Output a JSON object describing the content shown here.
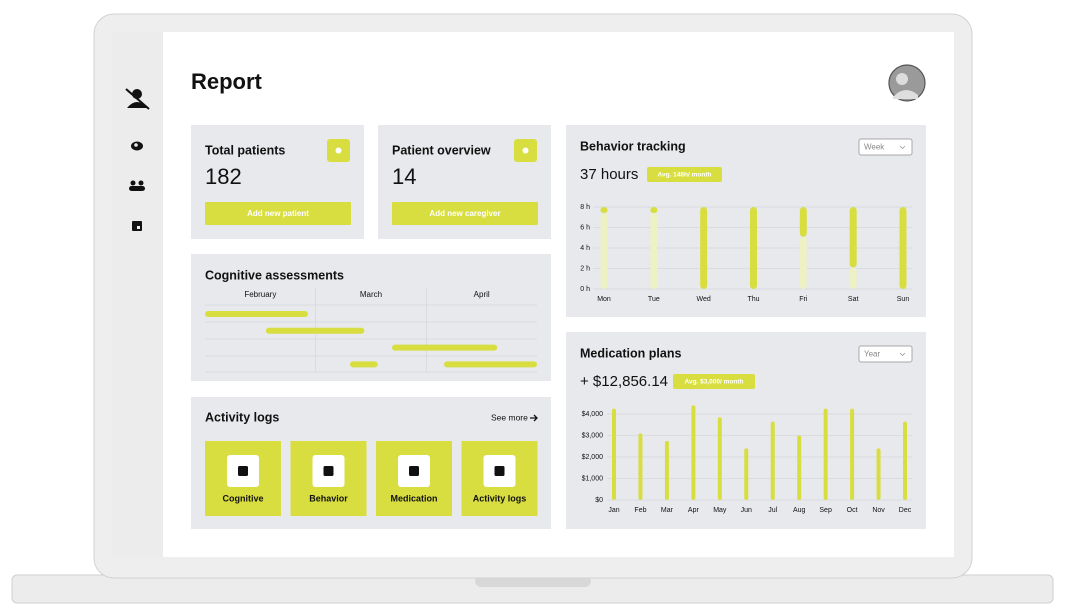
{
  "header": {
    "title": "Report"
  },
  "stats": [
    {
      "title": "Total patients",
      "value": "182",
      "button": "Add new patient"
    },
    {
      "title": "Patient overview",
      "value": "14",
      "button": "Add new caregiver"
    }
  ],
  "cognitive": {
    "title": "Cognitive assessments",
    "months": [
      "February",
      "March",
      "April"
    ],
    "xlim": [
      0,
      3
    ],
    "tasks": [
      {
        "start": 0,
        "end": 0.93,
        "row": 0
      },
      {
        "start": 0.55,
        "end": 1.44,
        "row": 1
      },
      {
        "start": 1.69,
        "end": 2.64,
        "row": 2
      },
      {
        "start": 1.31,
        "end": 1.56,
        "row": 3
      },
      {
        "start": 2.16,
        "end": 3.0,
        "row": 3
      }
    ]
  },
  "activity": {
    "title": "Activity logs",
    "link": "See more",
    "tiles": [
      "Cognitive",
      "Behavior",
      "Medication",
      "Activity logs"
    ]
  },
  "chart_data": [
    {
      "type": "bar",
      "title": "Behavior tracking",
      "period": "Week",
      "summary": "37 hours",
      "badge": "Avg. 148h/ month",
      "categories": [
        "Mon",
        "Tue",
        "Wed",
        "Thu",
        "Fri",
        "Sat",
        "Sun"
      ],
      "series": [
        {
          "color": "#eef1c4",
          "values": [
            7.4,
            7.4,
            0,
            0,
            5.1,
            2.1,
            0
          ]
        },
        {
          "color": "#d8de3f",
          "values": [
            0.6,
            0.6,
            8,
            8,
            2.9,
            5.9,
            8
          ]
        }
      ],
      "ylim": [
        0,
        8
      ],
      "yticks": [
        {
          "value": 0,
          "label": "0 h"
        },
        {
          "value": 2,
          "label": "2 h"
        },
        {
          "value": 4,
          "label": "4 h"
        },
        {
          "value": 6,
          "label": "6 h"
        },
        {
          "value": 8,
          "label": "8 h"
        }
      ],
      "grid": true
    },
    {
      "type": "bar",
      "title": "Medication plans",
      "period": "Year",
      "summary": "+ $12,856.14",
      "badge": "Avg. $3,000/ month",
      "categories": [
        "Jan",
        "Feb",
        "Mar",
        "Apr",
        "May",
        "Jun",
        "Jul",
        "Aug",
        "Sep",
        "Oct",
        "Nov",
        "Dec"
      ],
      "series": [
        {
          "color": "#d8de3f",
          "values": [
            4250,
            3100,
            2750,
            4400,
            3850,
            2400,
            3650,
            3000,
            4250,
            4250,
            2400,
            3650
          ]
        }
      ],
      "ylim": [
        0,
        4000
      ],
      "yticks": [
        {
          "value": 0,
          "label": "$0"
        },
        {
          "value": 1000,
          "label": "$1,000"
        },
        {
          "value": 2000,
          "label": "$2,000"
        },
        {
          "value": 3000,
          "label": "$3,000"
        },
        {
          "value": 4000,
          "label": "$4,000"
        }
      ],
      "grid": true
    }
  ]
}
